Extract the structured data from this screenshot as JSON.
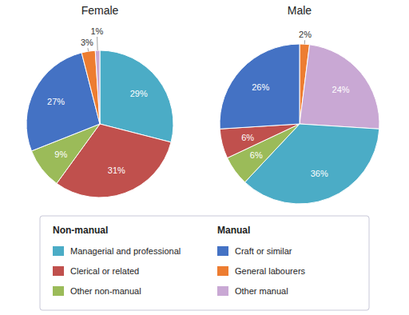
{
  "chart_data": [
    {
      "type": "pie",
      "title": "Female",
      "categories": [
        "Managerial and professional",
        "Clerical or related",
        "Other non-manual",
        "Craft or similar",
        "General labourers",
        "Other manual"
      ],
      "values": [
        29,
        31,
        9,
        27,
        3,
        1
      ],
      "value_labels": [
        "29%",
        "31%",
        "9%",
        "27%",
        "3%",
        "1%"
      ],
      "colors": [
        "#4BACC6",
        "#C0504D",
        "#9BBB59",
        "#4472C4",
        "#ED7D31",
        "#C9A8D4"
      ],
      "data_labels": true,
      "annotations": [
        "Non-manual",
        "Manual"
      ]
    },
    {
      "type": "pie",
      "title": "Male",
      "categories": [
        "General labourers",
        "Other manual",
        "Managerial and professional",
        "Other non-manual",
        "Clerical or related",
        "Craft or similar"
      ],
      "values": [
        2,
        24,
        36,
        6,
        6,
        26
      ],
      "value_labels": [
        "2%",
        "24%",
        "36%",
        "6%",
        "6%",
        "26%"
      ],
      "colors": [
        "#ED7D31",
        "#C9A8D4",
        "#4BACC6",
        "#9BBB59",
        "#C0504D",
        "#4472C4"
      ],
      "data_labels": true
    }
  ]
}
